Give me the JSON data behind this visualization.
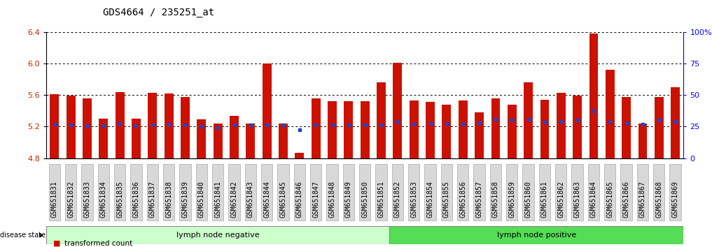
{
  "title": "GDS4664 / 235251_at",
  "samples": [
    "GSM651831",
    "GSM651832",
    "GSM651833",
    "GSM651834",
    "GSM651835",
    "GSM651836",
    "GSM651837",
    "GSM651838",
    "GSM651839",
    "GSM651840",
    "GSM651841",
    "GSM651842",
    "GSM651843",
    "GSM651844",
    "GSM651845",
    "GSM651846",
    "GSM651847",
    "GSM651848",
    "GSM651849",
    "GSM651850",
    "GSM651851",
    "GSM651852",
    "GSM651853",
    "GSM651854",
    "GSM651855",
    "GSM651856",
    "GSM651857",
    "GSM651858",
    "GSM651859",
    "GSM651860",
    "GSM651861",
    "GSM651862",
    "GSM651863",
    "GSM651864",
    "GSM651865",
    "GSM651866",
    "GSM651867",
    "GSM651868",
    "GSM651869"
  ],
  "bar_values": [
    5.61,
    5.59,
    5.56,
    5.3,
    5.64,
    5.3,
    5.63,
    5.62,
    5.58,
    5.29,
    5.24,
    5.34,
    5.24,
    6.0,
    5.24,
    4.87,
    5.56,
    5.52,
    5.52,
    5.52,
    5.76,
    6.01,
    5.53,
    5.51,
    5.48,
    5.53,
    5.38,
    5.56,
    5.48,
    5.76,
    5.54,
    5.63,
    5.59,
    6.38,
    5.92,
    5.58,
    5.24,
    5.58,
    5.7
  ],
  "percentile_values": [
    5.23,
    5.22,
    5.21,
    5.21,
    5.24,
    5.21,
    5.22,
    5.23,
    5.22,
    5.2,
    5.19,
    5.22,
    5.22,
    5.22,
    5.22,
    5.16,
    5.22,
    5.22,
    5.22,
    5.22,
    5.22,
    5.27,
    5.23,
    5.24,
    5.24,
    5.23,
    5.25,
    5.29,
    5.28,
    5.29,
    5.26,
    5.27,
    5.28,
    5.4,
    5.27,
    5.25,
    5.23,
    5.28,
    5.27
  ],
  "group_labels": [
    "lymph node negative",
    "lymph node positive"
  ],
  "group_split": 21,
  "neg_color": "#ccffcc",
  "pos_color": "#55dd55",
  "ylim_left": [
    4.8,
    6.4
  ],
  "yticks_left": [
    4.8,
    5.2,
    5.6,
    6.0,
    6.4
  ],
  "yticks_right_vals": [
    0,
    25,
    50,
    75,
    100
  ],
  "yticks_right_labels": [
    "0",
    "25",
    "50",
    "75",
    "100%"
  ],
  "bar_color": "#cc1100",
  "percentile_color": "#2244cc",
  "bar_bottom": 4.8,
  "background_color": "#ffffff",
  "axis_bg": "#ffffff",
  "title_fontsize": 10,
  "tick_fontsize": 7,
  "label_fontsize": 8,
  "disease_state_label": "disease state"
}
